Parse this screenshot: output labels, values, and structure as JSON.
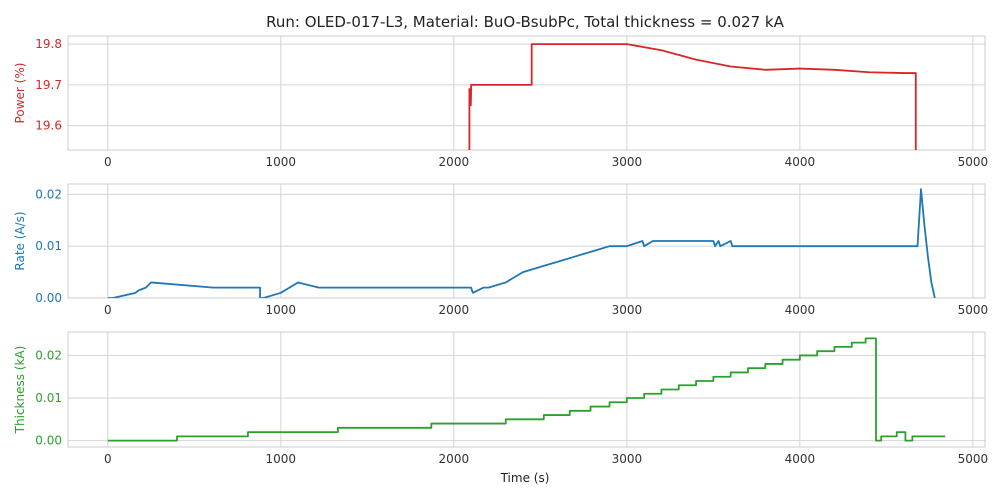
{
  "title": "Run: OLED-017-L3, Material: BuO-BsubPc, Total thickness = 0.027 kA",
  "chart_data": [
    {
      "type": "line",
      "ylabel": "Power (%)",
      "color": "#d62728",
      "xlim": [
        -230,
        5070
      ],
      "ylim": [
        19.54,
        19.82
      ],
      "xticks": [
        0,
        1000,
        2000,
        3000,
        4000,
        5000
      ],
      "yticks": [
        19.6,
        19.7,
        19.8
      ],
      "ytick_labels": [
        "19.6",
        "19.7",
        "19.8"
      ],
      "grid": true,
      "series": [
        {
          "x": [
            2090,
            2090,
            2098,
            2100,
            2100,
            2450,
            2450,
            3000,
            3200,
            3400,
            3600,
            3800,
            4000,
            4200,
            4400,
            4600,
            4670,
            4670
          ],
          "y": [
            19.54,
            19.69,
            19.65,
            19.69,
            19.7,
            19.7,
            19.8,
            19.8,
            19.785,
            19.762,
            19.745,
            19.737,
            19.74,
            19.737,
            19.731,
            19.729,
            19.729,
            19.54
          ]
        }
      ]
    },
    {
      "type": "line",
      "ylabel": "Rate (A/s)",
      "color": "#1f77b4",
      "xlim": [
        -230,
        5070
      ],
      "ylim": [
        0,
        0.022
      ],
      "xticks": [
        0,
        1000,
        2000,
        3000,
        4000,
        5000
      ],
      "yticks": [
        0,
        0.01,
        0.02
      ],
      "ytick_labels": [
        "0.00",
        "0.01",
        "0.02"
      ],
      "grid": true,
      "series": [
        {
          "x": [
            0,
            30,
            160,
            180,
            220,
            250,
            610,
            880,
            880,
            900,
            1000,
            1050,
            1100,
            1220,
            1230,
            2100,
            2110,
            2170,
            2200,
            2300,
            2350,
            2400,
            2500,
            2600,
            2700,
            2800,
            2900,
            3000,
            3090,
            3100,
            3150,
            3160,
            3500,
            3510,
            3530,
            3540,
            3600,
            3610,
            4680,
            4700,
            4720,
            4740,
            4760,
            4780
          ],
          "y": [
            0,
            0,
            0.001,
            0.0015,
            0.002,
            0.003,
            0.002,
            0.002,
            0,
            0,
            0.001,
            0.002,
            0.003,
            0.002,
            0.002,
            0.002,
            0.001,
            0.002,
            0.002,
            0.003,
            0.004,
            0.005,
            0.006,
            0.007,
            0.008,
            0.009,
            0.01,
            0.01,
            0.011,
            0.01,
            0.011,
            0.011,
            0.011,
            0.01,
            0.011,
            0.01,
            0.011,
            0.01,
            0.01,
            0.021,
            0.014,
            0.008,
            0.003,
            0
          ]
        }
      ]
    },
    {
      "type": "line",
      "ylabel": "Thickness (kA)",
      "xlabel": "Time (s)",
      "color": "#2ca02c",
      "xlim": [
        -230,
        5070
      ],
      "ylim": [
        -0.0015,
        0.0255
      ],
      "xticks": [
        0,
        1000,
        2000,
        3000,
        4000,
        5000
      ],
      "yticks": [
        0,
        0.01,
        0.02
      ],
      "ytick_labels": [
        "0.00",
        "0.01",
        "0.02"
      ],
      "grid": true,
      "series": [
        {
          "x": [
            0,
            400,
            400,
            810,
            810,
            1330,
            1330,
            1870,
            1870,
            2300,
            2300,
            2520,
            2520,
            2670,
            2670,
            2790,
            2790,
            2900,
            2900,
            3000,
            3000,
            3100,
            3100,
            3200,
            3200,
            3300,
            3300,
            3400,
            3400,
            3500,
            3500,
            3600,
            3600,
            3700,
            3700,
            3800,
            3800,
            3900,
            3900,
            4000,
            4000,
            4100,
            4100,
            4200,
            4200,
            4300,
            4300,
            4380,
            4380,
            4440,
            4440,
            4470,
            4470,
            4560,
            4560,
            4610,
            4610,
            4650,
            4650,
            4670,
            4670,
            4840
          ],
          "y": [
            0,
            0,
            0.001,
            0.001,
            0.002,
            0.002,
            0.003,
            0.003,
            0.004,
            0.004,
            0.005,
            0.005,
            0.006,
            0.006,
            0.007,
            0.007,
            0.008,
            0.008,
            0.009,
            0.009,
            0.01,
            0.01,
            0.011,
            0.011,
            0.012,
            0.012,
            0.013,
            0.013,
            0.014,
            0.014,
            0.015,
            0.015,
            0.016,
            0.016,
            0.017,
            0.017,
            0.018,
            0.018,
            0.019,
            0.019,
            0.02,
            0.02,
            0.021,
            0.021,
            0.022,
            0.022,
            0.023,
            0.023,
            0.024,
            0.024,
            0,
            0,
            0.001,
            0.001,
            0.002,
            0.002,
            0,
            0,
            0.001,
            0.001,
            0.001,
            0.001
          ]
        }
      ]
    }
  ]
}
